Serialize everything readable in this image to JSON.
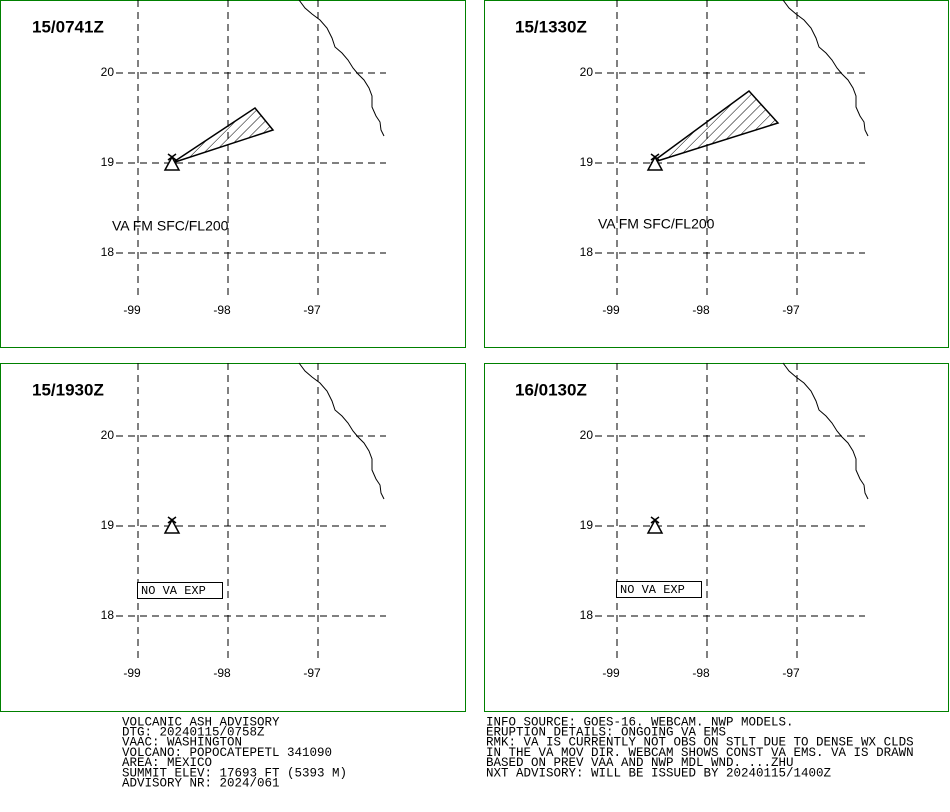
{
  "lat_ticks": [
    20,
    19,
    18
  ],
  "lon_ticks": [
    -99,
    -98,
    -97
  ],
  "panels": [
    {
      "time": "15/0741Z",
      "annotation": "VA FM SFC/FL200"
    },
    {
      "time": "15/1330Z",
      "annotation": "VA FM SFC/FL200"
    },
    {
      "time": "15/1930Z",
      "annotation": "NO VA EXP"
    },
    {
      "time": "16/0130Z",
      "annotation": "NO VA EXP"
    }
  ],
  "advisory": {
    "left": [
      "VOLCANIC ASH ADVISORY",
      "DTG: 20240115/0758Z",
      "VAAC: WASHINGTON",
      "VOLCANO: POPOCATEPETL 341090",
      "AREA: MEXICO",
      "SUMMIT ELEV: 17693 FT (5393 M)",
      "ADVISORY NR: 2024/061"
    ],
    "right": [
      "INFO SOURCE: GOES-16. WEBCAM. NWP MODELS.",
      "ERUPTION DETAILS: ONGOING VA EMS",
      "RMK: VA IS CURRENTLY NOT OBS ON STLT DUE TO DENSE WX CLDS",
      "IN THE VA MOV DIR. WEBCAM SHOWS CONST VA EMS. VA IS DRAWN",
      "BASED ON PREV VAA AND NWP MDL WND. ...ZHU",
      "NXT ADVISORY: WILL BE ISSUED BY 20240115/1400Z"
    ]
  }
}
